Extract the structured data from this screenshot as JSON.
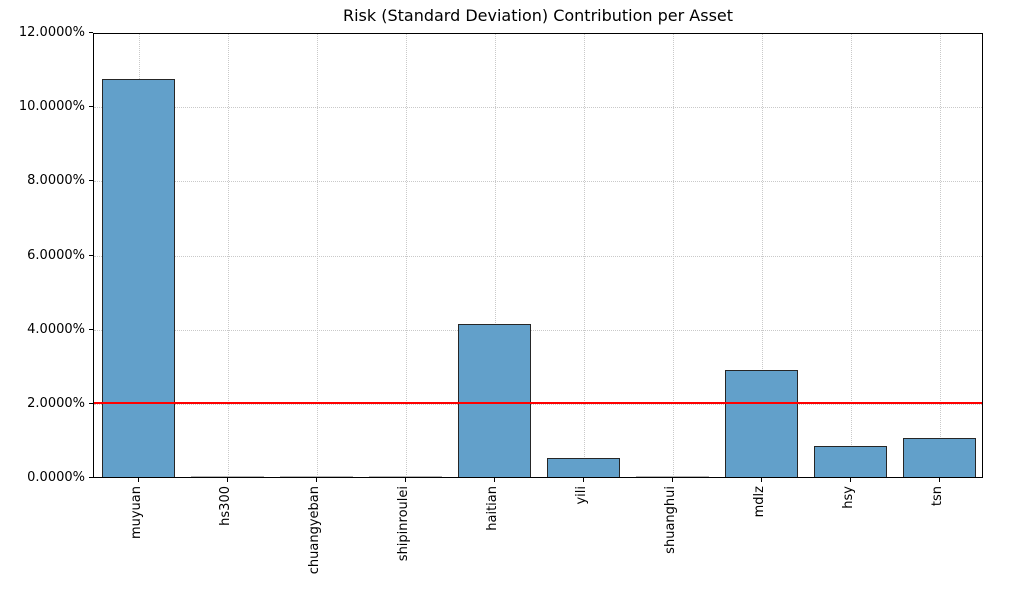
{
  "title": "Risk (Standard Deviation) Contribution per Asset",
  "colors": {
    "bar_fill": "#62a0ca",
    "bar_edge": "#262626",
    "tiny_bar": "#b5b5b5",
    "threshold_line": "#ff0000",
    "grid": "#c9c9c9",
    "spine": "#000000"
  },
  "chart_data": {
    "type": "bar",
    "title": "Risk (Standard Deviation) Contribution per Asset",
    "categories": [
      "muyuan",
      "hs300",
      "chuangyeban",
      "shipinroulei",
      "haitian",
      "yili",
      "shuanghui",
      "mdlz",
      "hsy",
      "tsn"
    ],
    "values": [
      10.72,
      0.02,
      0.02,
      0.02,
      4.13,
      0.5,
      0.03,
      2.89,
      0.84,
      1.06
    ],
    "unit": "%",
    "xlabel": "",
    "ylabel": "",
    "ylim": [
      0,
      12
    ],
    "ytick_step": 2,
    "ytick_labels": [
      "0.0000%",
      "2.0000%",
      "4.0000%",
      "6.0000%",
      "8.0000%",
      "10.0000%",
      "12.0000%"
    ],
    "threshold_line": {
      "value": 2.04,
      "color": "#ff0000"
    },
    "grid": "dotted",
    "legend": "none",
    "x_tick_rotation": 90,
    "bar_width_fraction": 0.82
  }
}
